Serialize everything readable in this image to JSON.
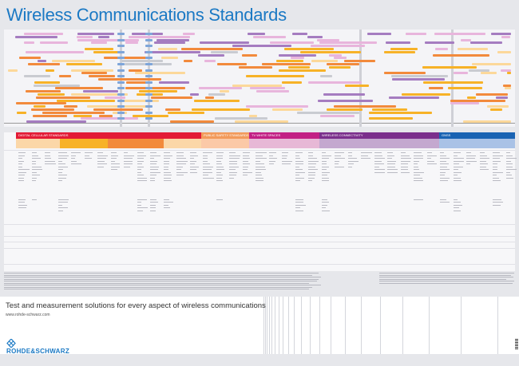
{
  "header": {
    "title": "Wireless Communications Standards"
  },
  "sections": [
    {
      "label": "DIGITAL CELLULAR STANDARDS",
      "color": "#e31b36",
      "sub": "#fbd7a8"
    },
    {
      "label": "PUBLIC SAFETY STANDARDS",
      "color": "#f29a5b",
      "sub": "#fbc9a7"
    },
    {
      "label": "TV WHITE SPACES",
      "color": "#c21f84",
      "sub": "#e7b8d6"
    },
    {
      "label": "WIRELESS CONNECTIVITY",
      "color": "#7b2f8c",
      "sub": "#c4a8cf"
    },
    {
      "label": "GNSS",
      "color": "#1a63b3",
      "sub": "#a9c2e6"
    }
  ],
  "footer": {
    "tagline": "Test and measurement solutions for every aspect of wireless communications",
    "url": "www.rohde-schwarz.com",
    "logo": "ROHDE&SCHWARZ"
  },
  "colors": {
    "accent": "#1b79c4",
    "orange": "#f28a3c",
    "amber": "#f7b227",
    "lightorange": "#fcd89a",
    "pink": "#e8b5dc",
    "purple": "#a57cc0",
    "gray": "#c9cbd1",
    "blue": "#7ea5d9"
  }
}
